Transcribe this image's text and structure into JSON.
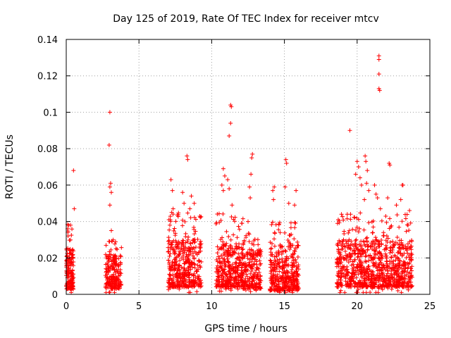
{
  "chart_data": {
    "type": "scatter",
    "title": "Day 125 of 2019, Rate Of TEC Index for receiver mtcv",
    "xlabel": "GPS time / hours",
    "ylabel": "ROTI / TECUs",
    "xlim": [
      0,
      25
    ],
    "ylim": [
      0,
      0.14
    ],
    "xticks": [
      "0",
      "5",
      "10",
      "15",
      "20",
      "25"
    ],
    "yticks": [
      "0",
      "0.02",
      "0.04",
      "0.06",
      "0.08",
      "0.1",
      "0.12",
      "0.14"
    ],
    "grid": true,
    "marker": "+",
    "color": "#ff0000",
    "clusters": [
      {
        "x_range": [
          0.0,
          0.5
        ],
        "core": [
          0.003,
          0.025
        ],
        "spread": [
          0.0,
          0.04
        ],
        "n": 160
      },
      {
        "x_range": [
          2.7,
          3.8
        ],
        "core": [
          0.003,
          0.022
        ],
        "spread": [
          0.0,
          0.03
        ],
        "n": 200
      },
      {
        "x_range": [
          7.0,
          9.3
        ],
        "core": [
          0.004,
          0.03
        ],
        "spread": [
          0.0,
          0.045
        ],
        "n": 420
      },
      {
        "x_range": [
          10.3,
          12.2
        ],
        "core": [
          0.004,
          0.028
        ],
        "spread": [
          0.0,
          0.045
        ],
        "n": 360
      },
      {
        "x_range": [
          12.2,
          13.4
        ],
        "core": [
          0.003,
          0.025
        ],
        "spread": [
          0.0,
          0.035
        ],
        "n": 200
      },
      {
        "x_range": [
          14.0,
          16.0
        ],
        "core": [
          0.002,
          0.028
        ],
        "spread": [
          0.0,
          0.04
        ],
        "n": 380
      },
      {
        "x_range": [
          18.6,
          23.8
        ],
        "core": [
          0.004,
          0.03
        ],
        "spread": [
          0.0,
          0.045
        ],
        "n": 900
      }
    ],
    "outliers": [
      {
        "x": 0.5,
        "y": 0.068
      },
      {
        "x": 0.55,
        "y": 0.047
      },
      {
        "x": 0.3,
        "y": 0.038
      },
      {
        "x": 0.1,
        "y": 0.036
      },
      {
        "x": 3.0,
        "y": 0.1
      },
      {
        "x": 2.95,
        "y": 0.082
      },
      {
        "x": 3.05,
        "y": 0.061
      },
      {
        "x": 3.0,
        "y": 0.059
      },
      {
        "x": 3.1,
        "y": 0.056
      },
      {
        "x": 3.0,
        "y": 0.049
      },
      {
        "x": 3.1,
        "y": 0.035
      },
      {
        "x": 7.2,
        "y": 0.063
      },
      {
        "x": 7.3,
        "y": 0.057
      },
      {
        "x": 7.35,
        "y": 0.047
      },
      {
        "x": 7.25,
        "y": 0.045
      },
      {
        "x": 8.3,
        "y": 0.076
      },
      {
        "x": 8.35,
        "y": 0.074
      },
      {
        "x": 8.0,
        "y": 0.056
      },
      {
        "x": 8.1,
        "y": 0.05
      },
      {
        "x": 8.6,
        "y": 0.054
      },
      {
        "x": 8.8,
        "y": 0.05
      },
      {
        "x": 8.5,
        "y": 0.047
      },
      {
        "x": 10.8,
        "y": 0.069
      },
      {
        "x": 10.9,
        "y": 0.065
      },
      {
        "x": 10.7,
        "y": 0.06
      },
      {
        "x": 10.8,
        "y": 0.057
      },
      {
        "x": 11.3,
        "y": 0.104
      },
      {
        "x": 11.35,
        "y": 0.103
      },
      {
        "x": 11.3,
        "y": 0.094
      },
      {
        "x": 11.2,
        "y": 0.087
      },
      {
        "x": 11.1,
        "y": 0.063
      },
      {
        "x": 11.2,
        "y": 0.058
      },
      {
        "x": 11.4,
        "y": 0.049
      },
      {
        "x": 12.8,
        "y": 0.077
      },
      {
        "x": 12.75,
        "y": 0.075
      },
      {
        "x": 12.7,
        "y": 0.066
      },
      {
        "x": 12.6,
        "y": 0.059
      },
      {
        "x": 12.65,
        "y": 0.053
      },
      {
        "x": 12.5,
        "y": 0.04
      },
      {
        "x": 14.3,
        "y": 0.059
      },
      {
        "x": 14.2,
        "y": 0.057
      },
      {
        "x": 14.25,
        "y": 0.052
      },
      {
        "x": 15.1,
        "y": 0.074
      },
      {
        "x": 15.15,
        "y": 0.072
      },
      {
        "x": 15.05,
        "y": 0.059
      },
      {
        "x": 15.8,
        "y": 0.057
      },
      {
        "x": 15.7,
        "y": 0.049
      },
      {
        "x": 15.3,
        "y": 0.05
      },
      {
        "x": 18.7,
        "y": 0.041
      },
      {
        "x": 19.5,
        "y": 0.09
      },
      {
        "x": 20.0,
        "y": 0.073
      },
      {
        "x": 20.1,
        "y": 0.07
      },
      {
        "x": 19.9,
        "y": 0.066
      },
      {
        "x": 20.2,
        "y": 0.064
      },
      {
        "x": 20.3,
        "y": 0.06
      },
      {
        "x": 20.55,
        "y": 0.076
      },
      {
        "x": 20.6,
        "y": 0.073
      },
      {
        "x": 20.7,
        "y": 0.068
      },
      {
        "x": 20.65,
        "y": 0.061
      },
      {
        "x": 20.8,
        "y": 0.057
      },
      {
        "x": 20.5,
        "y": 0.052
      },
      {
        "x": 21.5,
        "y": 0.131
      },
      {
        "x": 21.5,
        "y": 0.129
      },
      {
        "x": 21.5,
        "y": 0.121
      },
      {
        "x": 21.5,
        "y": 0.113
      },
      {
        "x": 21.55,
        "y": 0.112
      },
      {
        "x": 21.2,
        "y": 0.06
      },
      {
        "x": 21.3,
        "y": 0.055
      },
      {
        "x": 21.4,
        "y": 0.053
      },
      {
        "x": 21.6,
        "y": 0.047
      },
      {
        "x": 22.2,
        "y": 0.072
      },
      {
        "x": 22.25,
        "y": 0.071
      },
      {
        "x": 22.1,
        "y": 0.053
      },
      {
        "x": 22.7,
        "y": 0.049
      },
      {
        "x": 23.1,
        "y": 0.06
      },
      {
        "x": 23.15,
        "y": 0.06
      },
      {
        "x": 23.0,
        "y": 0.052
      },
      {
        "x": 23.6,
        "y": 0.046
      },
      {
        "x": 23.5,
        "y": 0.038
      }
    ]
  }
}
